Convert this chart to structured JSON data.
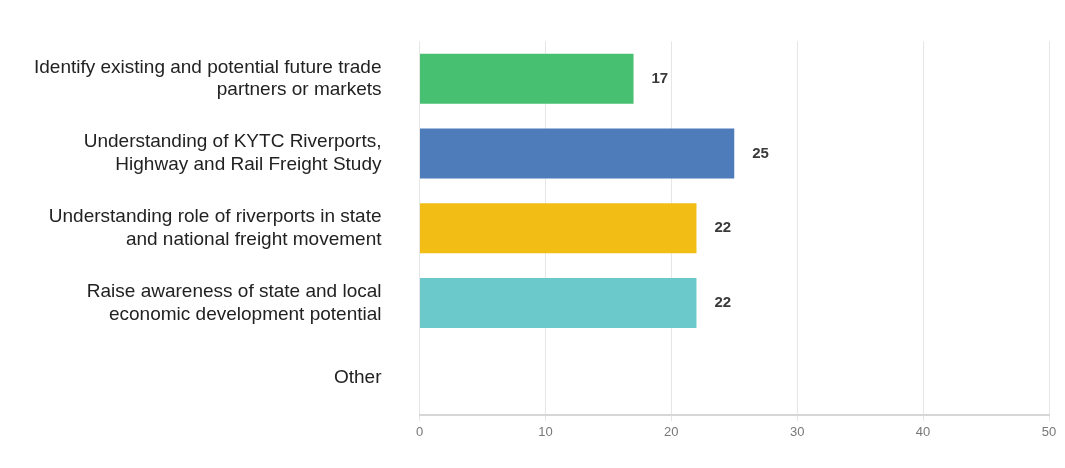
{
  "chart_data": {
    "type": "bar",
    "orientation": "horizontal",
    "categories": [
      "Identify existing and potential future trade partners or markets",
      "Understanding of KYTC Riverports, Highway and Rail Freight Study",
      "Understanding role of riverports in state and national freight movement",
      "Raise awareness of state and local economic development potential",
      "Other"
    ],
    "values": [
      17,
      25,
      22,
      22,
      0
    ],
    "colors": [
      "#48c072",
      "#4e7bb9",
      "#f2be15",
      "#6bc9cc",
      "#cccccc"
    ],
    "value_labels": [
      "17",
      "25",
      "22",
      "22",
      null
    ],
    "xlim": [
      0,
      50
    ],
    "xticks": [
      0,
      10,
      20,
      30,
      40,
      50
    ],
    "grid": "x",
    "legend": false
  }
}
